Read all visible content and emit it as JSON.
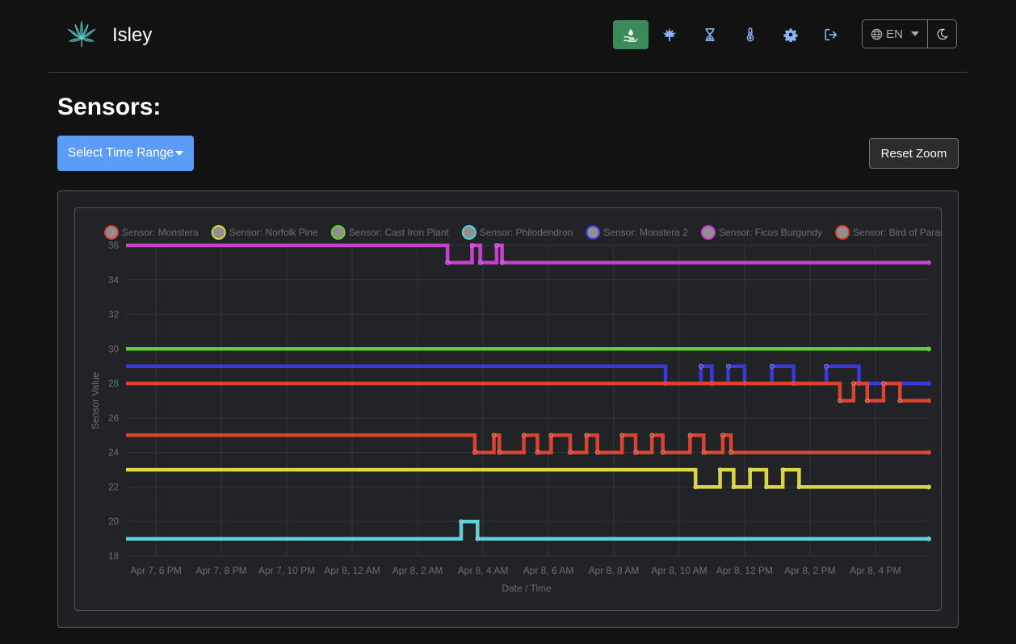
{
  "app": {
    "name": "Isley"
  },
  "nav": {
    "items": [
      {
        "icon": "hand-water-icon",
        "active": true
      },
      {
        "icon": "leaf-icon",
        "active": false
      },
      {
        "icon": "hourglass-icon",
        "active": false
      },
      {
        "icon": "thermometer-icon",
        "active": false
      },
      {
        "icon": "gear-icon",
        "active": false
      },
      {
        "icon": "logout-icon",
        "active": false
      }
    ],
    "language": "EN",
    "theme_icon": "moon-icon"
  },
  "page": {
    "title": "Sensors:",
    "select_time_range": "Select Time Range",
    "reset_zoom": "Reset Zoom"
  },
  "chart_data": {
    "type": "line",
    "xlabel": "Date / Time",
    "ylabel": "Sensor Value",
    "ylim": [
      18,
      36
    ],
    "yticks": [
      18,
      20,
      22,
      24,
      26,
      28,
      30,
      32,
      34,
      36
    ],
    "xrange": [
      "2024-04-07T17:05",
      "2024-04-08T17:35"
    ],
    "xticks": [
      {
        "t": "2024-04-07T18:00",
        "label": "Apr 7, 6 PM"
      },
      {
        "t": "2024-04-07T20:00",
        "label": "Apr 7, 8 PM"
      },
      {
        "t": "2024-04-07T22:00",
        "label": "Apr 7, 10 PM"
      },
      {
        "t": "2024-04-08T00:00",
        "label": "Apr 8, 12 AM"
      },
      {
        "t": "2024-04-08T02:00",
        "label": "Apr 8, 2 AM"
      },
      {
        "t": "2024-04-08T04:00",
        "label": "Apr 8, 4 AM"
      },
      {
        "t": "2024-04-08T06:00",
        "label": "Apr 8, 6 AM"
      },
      {
        "t": "2024-04-08T08:00",
        "label": "Apr 8, 8 AM"
      },
      {
        "t": "2024-04-08T10:00",
        "label": "Apr 8, 10 AM"
      },
      {
        "t": "2024-04-08T12:00",
        "label": "Apr 8, 12 PM"
      },
      {
        "t": "2024-04-08T14:00",
        "label": "Apr 8, 2 PM"
      },
      {
        "t": "2024-04-08T16:00",
        "label": "Apr 8, 4 PM"
      }
    ],
    "grid": true,
    "legend_position": "top",
    "series": [
      {
        "name": "Sensor: Monstera",
        "color": "#d9432f",
        "points": [
          [
            "2024-04-07T17:05",
            25
          ],
          [
            "2024-04-08T03:45",
            25
          ],
          [
            "2024-04-08T03:45",
            24
          ],
          [
            "2024-04-08T04:20",
            24
          ],
          [
            "2024-04-08T04:20",
            25
          ],
          [
            "2024-04-08T04:30",
            25
          ],
          [
            "2024-04-08T04:30",
            24
          ],
          [
            "2024-04-08T05:15",
            24
          ],
          [
            "2024-04-08T05:15",
            25
          ],
          [
            "2024-04-08T05:40",
            25
          ],
          [
            "2024-04-08T05:40",
            24
          ],
          [
            "2024-04-08T06:05",
            24
          ],
          [
            "2024-04-08T06:05",
            25
          ],
          [
            "2024-04-08T06:40",
            25
          ],
          [
            "2024-04-08T06:40",
            24
          ],
          [
            "2024-04-08T07:10",
            24
          ],
          [
            "2024-04-08T07:10",
            25
          ],
          [
            "2024-04-08T07:30",
            25
          ],
          [
            "2024-04-08T07:30",
            24
          ],
          [
            "2024-04-08T08:15",
            24
          ],
          [
            "2024-04-08T08:15",
            25
          ],
          [
            "2024-04-08T08:40",
            25
          ],
          [
            "2024-04-08T08:40",
            24
          ],
          [
            "2024-04-08T09:10",
            24
          ],
          [
            "2024-04-08T09:10",
            25
          ],
          [
            "2024-04-08T09:30",
            25
          ],
          [
            "2024-04-08T09:30",
            24
          ],
          [
            "2024-04-08T10:20",
            24
          ],
          [
            "2024-04-08T10:20",
            25
          ],
          [
            "2024-04-08T10:45",
            25
          ],
          [
            "2024-04-08T10:45",
            24
          ],
          [
            "2024-04-08T11:20",
            24
          ],
          [
            "2024-04-08T11:20",
            25
          ],
          [
            "2024-04-08T11:35",
            25
          ],
          [
            "2024-04-08T11:35",
            24
          ],
          [
            "2024-04-08T17:35",
            24
          ]
        ]
      },
      {
        "name": "Sensor: Norfolk Pine",
        "color": "#dbd544",
        "points": [
          [
            "2024-04-07T17:05",
            23
          ],
          [
            "2024-04-08T10:30",
            23
          ],
          [
            "2024-04-08T10:30",
            22
          ],
          [
            "2024-04-08T11:15",
            22
          ],
          [
            "2024-04-08T11:15",
            23
          ],
          [
            "2024-04-08T11:40",
            23
          ],
          [
            "2024-04-08T11:40",
            22
          ],
          [
            "2024-04-08T12:10",
            22
          ],
          [
            "2024-04-08T12:10",
            23
          ],
          [
            "2024-04-08T12:40",
            23
          ],
          [
            "2024-04-08T12:40",
            22
          ],
          [
            "2024-04-08T13:10",
            22
          ],
          [
            "2024-04-08T13:10",
            23
          ],
          [
            "2024-04-08T13:40",
            23
          ],
          [
            "2024-04-08T13:40",
            22
          ],
          [
            "2024-04-08T17:35",
            22
          ]
        ]
      },
      {
        "name": "Sensor: Cast Iron Plant",
        "color": "#5fd038",
        "points": [
          [
            "2024-04-07T17:05",
            30
          ],
          [
            "2024-04-08T17:35",
            30
          ]
        ]
      },
      {
        "name": "Sensor: Philodendron",
        "color": "#5fd0d8",
        "points": [
          [
            "2024-04-07T17:05",
            19
          ],
          [
            "2024-04-08T03:20",
            19
          ],
          [
            "2024-04-08T03:20",
            20
          ],
          [
            "2024-04-08T03:50",
            20
          ],
          [
            "2024-04-08T03:50",
            19
          ],
          [
            "2024-04-08T17:35",
            19
          ]
        ]
      },
      {
        "name": "Sensor: Monstera 2",
        "color": "#3a3ad8",
        "points": [
          [
            "2024-04-07T17:05",
            29
          ],
          [
            "2024-04-08T09:35",
            29
          ],
          [
            "2024-04-08T09:35",
            28
          ],
          [
            "2024-04-08T10:40",
            28
          ],
          [
            "2024-04-08T10:40",
            29
          ],
          [
            "2024-04-08T11:00",
            29
          ],
          [
            "2024-04-08T11:00",
            28
          ],
          [
            "2024-04-08T11:30",
            28
          ],
          [
            "2024-04-08T11:30",
            29
          ],
          [
            "2024-04-08T12:00",
            29
          ],
          [
            "2024-04-08T12:00",
            28
          ],
          [
            "2024-04-08T12:50",
            28
          ],
          [
            "2024-04-08T12:50",
            29
          ],
          [
            "2024-04-08T13:30",
            29
          ],
          [
            "2024-04-08T13:30",
            28
          ],
          [
            "2024-04-08T14:30",
            28
          ],
          [
            "2024-04-08T14:30",
            29
          ],
          [
            "2024-04-08T15:30",
            29
          ],
          [
            "2024-04-08T15:30",
            28
          ],
          [
            "2024-04-08T17:35",
            28
          ]
        ]
      },
      {
        "name": "Sensor: Ficus Burgundy",
        "color": "#c840d0",
        "points": [
          [
            "2024-04-07T17:05",
            36
          ],
          [
            "2024-04-08T02:55",
            36
          ],
          [
            "2024-04-08T02:55",
            35
          ],
          [
            "2024-04-08T03:40",
            35
          ],
          [
            "2024-04-08T03:40",
            36
          ],
          [
            "2024-04-08T03:55",
            36
          ],
          [
            "2024-04-08T03:55",
            35
          ],
          [
            "2024-04-08T04:25",
            35
          ],
          [
            "2024-04-08T04:25",
            36
          ],
          [
            "2024-04-08T04:35",
            36
          ],
          [
            "2024-04-08T04:35",
            35
          ],
          [
            "2024-04-08T17:35",
            35
          ]
        ]
      },
      {
        "name": "Sensor: Bird of Paradise",
        "color": "#d9432f",
        "points": [
          [
            "2024-04-07T17:05",
            28
          ],
          [
            "2024-04-08T14:55",
            28
          ],
          [
            "2024-04-08T14:55",
            27
          ],
          [
            "2024-04-08T15:20",
            27
          ],
          [
            "2024-04-08T15:20",
            28
          ],
          [
            "2024-04-08T15:45",
            28
          ],
          [
            "2024-04-08T15:45",
            27
          ],
          [
            "2024-04-08T16:15",
            27
          ],
          [
            "2024-04-08T16:15",
            28
          ],
          [
            "2024-04-08T16:45",
            28
          ],
          [
            "2024-04-08T16:45",
            27
          ],
          [
            "2024-04-08T17:35",
            27
          ]
        ]
      }
    ]
  }
}
